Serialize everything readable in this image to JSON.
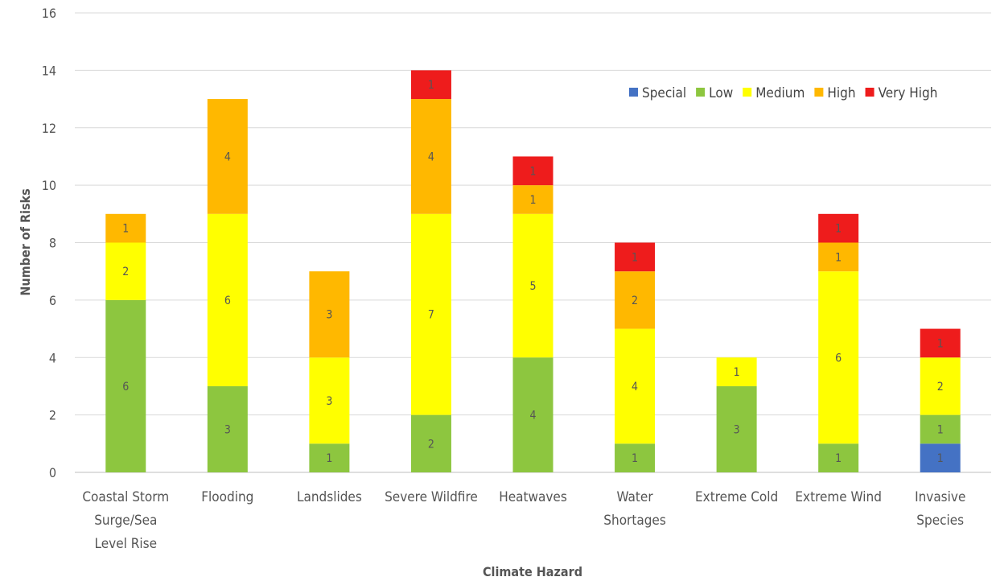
{
  "chart_data": {
    "type": "bar",
    "stacked": true,
    "title": "",
    "xlabel": "Climate Hazard",
    "ylabel": "Number of Risks",
    "ylim": [
      0,
      16
    ],
    "yticks": [
      0,
      2,
      4,
      6,
      8,
      10,
      12,
      14,
      16
    ],
    "grid": true,
    "legend_position": "top-right",
    "categories": [
      [
        "Coastal Storm",
        "Surge/Sea",
        "Level Rise"
      ],
      [
        "Flooding"
      ],
      [
        "Landslides"
      ],
      [
        "Severe Wildfire"
      ],
      [
        "Heatwaves"
      ],
      [
        "Water",
        "Shortages"
      ],
      [
        "Extreme Cold"
      ],
      [
        "Extreme Wind"
      ],
      [
        "Invasive",
        "Species"
      ]
    ],
    "series": [
      {
        "name": "Special",
        "color": "#4472c4",
        "values": [
          0,
          0,
          0,
          0,
          0,
          0,
          0,
          0,
          1
        ]
      },
      {
        "name": "Low",
        "color": "#8dc63f",
        "values": [
          6,
          3,
          1,
          2,
          4,
          1,
          3,
          1,
          1
        ]
      },
      {
        "name": "Medium",
        "color": "#ffff00",
        "values": [
          2,
          6,
          3,
          7,
          5,
          4,
          1,
          6,
          2
        ]
      },
      {
        "name": "High",
        "color": "#ffb800",
        "values": [
          1,
          4,
          3,
          4,
          1,
          2,
          0,
          1,
          0
        ]
      },
      {
        "name": "Very High",
        "color": "#ee1c1c",
        "values": [
          0,
          0,
          0,
          1,
          1,
          1,
          0,
          1,
          1
        ]
      }
    ]
  }
}
